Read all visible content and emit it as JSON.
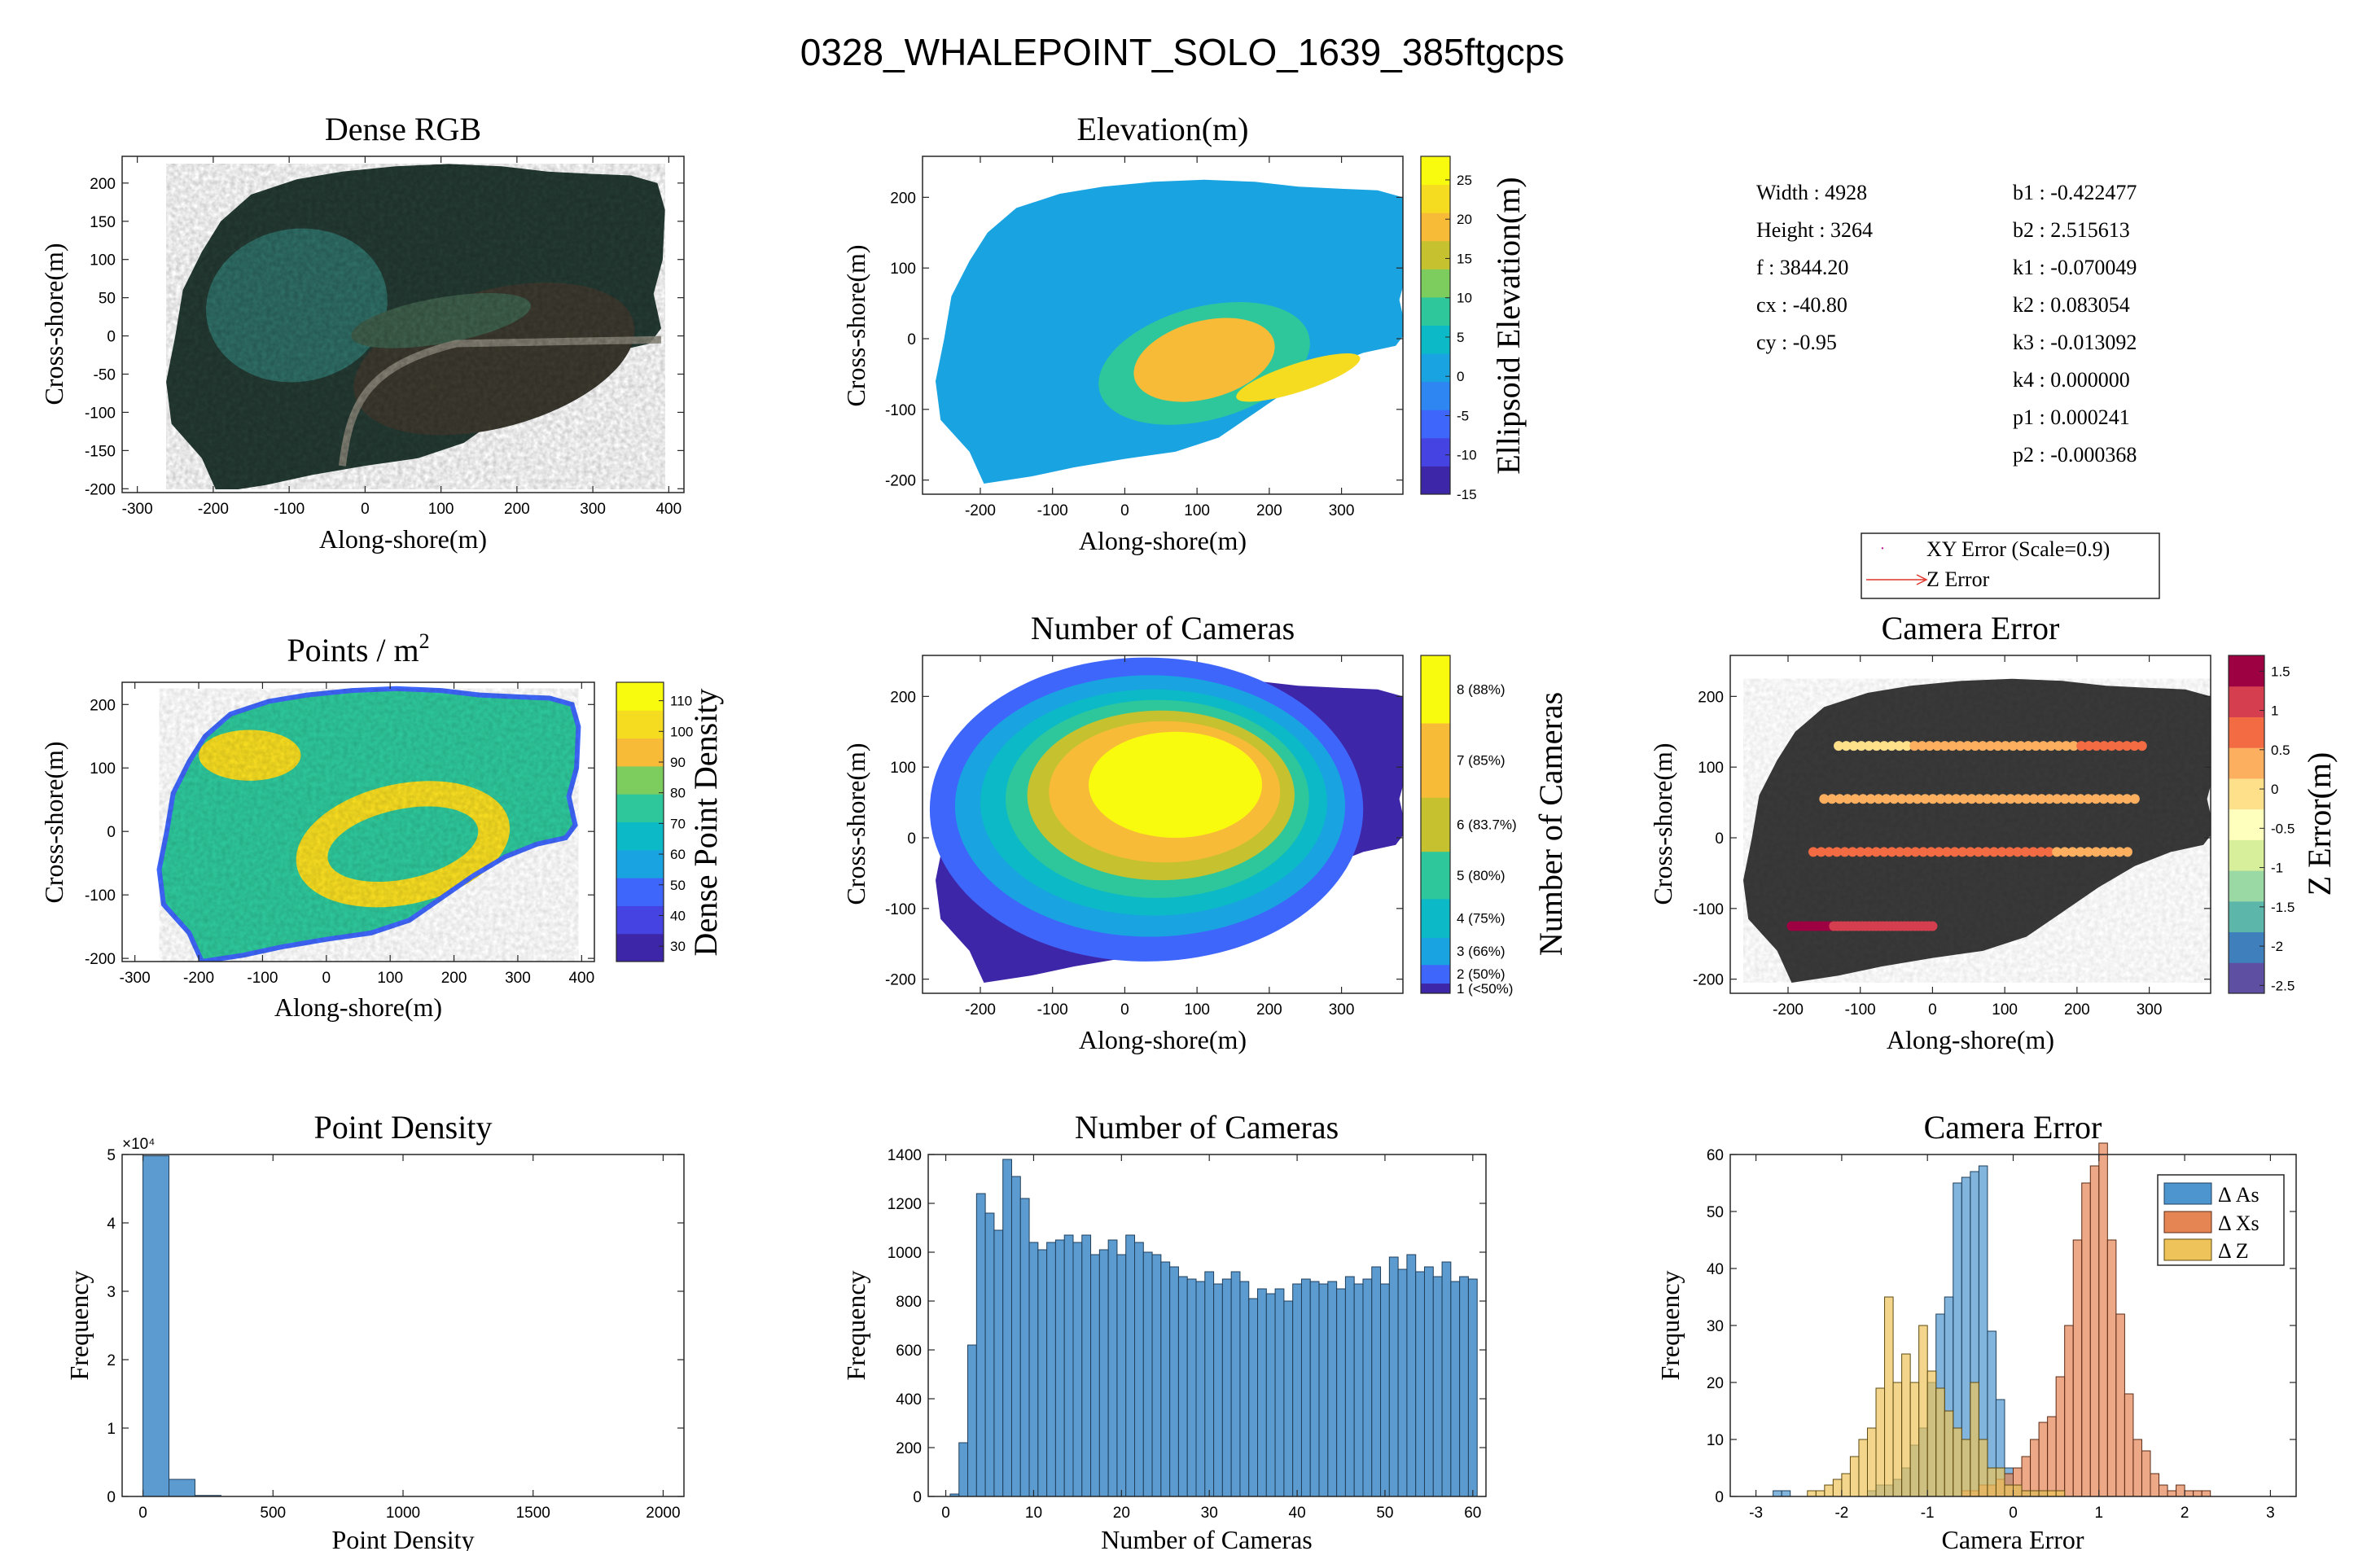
{
  "figure_title": "0328_WHALEPOINT_SOLO_1639_385ftgcps",
  "colors": {
    "rgb_dark": "#253b34",
    "rgb_teal": "#2f6e66",
    "rgb_sand": "#8d8a7c",
    "rgb_brown": "#3d3a30",
    "hist_blue": "#5b9bd0",
    "hist_edge": "#1f3f5b",
    "dAs": "#4c95cf",
    "dXs": "#e58554",
    "dZ": "#eec45a",
    "parula": [
      "#3e26a8",
      "#4543e2",
      "#3f66fb",
      "#2d86f2",
      "#19a3e1",
      "#0cb9c7",
      "#2ec79b",
      "#7ccc5e",
      "#c6c22f",
      "#f8bb38",
      "#f6dc21",
      "#f9fb0e"
    ],
    "rdylbu": [
      "#5e4fa2",
      "#3f7fbb",
      "#5cb7aa",
      "#9ad8a4",
      "#d7ee9b",
      "#fefebd",
      "#fee08b",
      "#fdaf60",
      "#f36b43",
      "#d53e4f",
      "#9e0142"
    ]
  },
  "intrinsics": {
    "left": [
      {
        "label": "Width :",
        "value": "4928"
      },
      {
        "label": "Height :",
        "value": "3264"
      },
      {
        "label": "f :",
        "value": "3844.20"
      },
      {
        "label": "cx :",
        "value": "-40.80"
      },
      {
        "label": "cy :",
        "value": "-0.95"
      }
    ],
    "right": [
      {
        "label": "b1 :",
        "value": "-0.422477"
      },
      {
        "label": "b2 :",
        "value": "2.515613"
      },
      {
        "label": "k1 :",
        "value": "-0.070049"
      },
      {
        "label": "k2 :",
        "value": "0.083054"
      },
      {
        "label": "k3 :",
        "value": "-0.013092"
      },
      {
        "label": "k4 :",
        "value": "0.000000"
      },
      {
        "label": "p1 :",
        "value": "0.000241"
      },
      {
        "label": "p2 :",
        "value": "-0.000368"
      }
    ]
  },
  "legend": {
    "xy": "XY Error (Scale=0.9)",
    "z": "Z Error"
  },
  "chart_data": [
    {
      "id": "dense-rgb",
      "type": "image",
      "title": "Dense RGB",
      "xlabel": "Along-shore(m)",
      "ylabel": "Cross-shore(m)",
      "xlim": [
        -320,
        420
      ],
      "ylim": [
        -205,
        235
      ],
      "xticks": [
        -300,
        -200,
        -100,
        0,
        100,
        200,
        300,
        400
      ],
      "yticks": [
        200,
        150,
        100,
        50,
        0,
        -50,
        -100,
        -150,
        -200
      ]
    },
    {
      "id": "elevation",
      "type": "heatmap",
      "title": "Elevation(m)",
      "xlabel": "Along-shore(m)",
      "ylabel": "Cross-shore(m)",
      "xlim": [
        -280,
        385
      ],
      "ylim": [
        -220,
        258
      ],
      "xticks": [
        -200,
        -100,
        0,
        100,
        200,
        300
      ],
      "yticks": [
        200,
        100,
        0,
        -100,
        -200
      ],
      "colorbar": {
        "label": "Ellipsoid Elevation(m)",
        "range": [
          -15,
          28
        ],
        "ticks": [
          25,
          20,
          15,
          10,
          5,
          0,
          -5,
          -10,
          -15
        ]
      },
      "values": {
        "background": 0,
        "inland_mound": 10,
        "mound_core": 20,
        "ridge": 26
      }
    },
    {
      "id": "points-density",
      "type": "heatmap",
      "title": "Points / m",
      "title_superscript": "2",
      "xlabel": "Along-shore(m)",
      "ylabel": "Cross-shore(m)",
      "xlim": [
        -320,
        420
      ],
      "ylim": [
        -205,
        235
      ],
      "xticks": [
        -300,
        -200,
        -100,
        0,
        100,
        200,
        300,
        400
      ],
      "yticks": [
        200,
        100,
        0,
        -100,
        -200
      ],
      "colorbar": {
        "label": "Dense Point Density",
        "range": [
          25,
          116
        ],
        "ticks": [
          110,
          100,
          90,
          80,
          70,
          60,
          50,
          40,
          30
        ]
      },
      "values": {
        "typical": 75,
        "high": 110,
        "edge": 40
      }
    },
    {
      "id": "num-cameras-map",
      "type": "heatmap",
      "title": "Number of Cameras",
      "xlabel": "Along-shore(m)",
      "ylabel": "Cross-shore(m)",
      "xlim": [
        -280,
        385
      ],
      "ylim": [
        -220,
        258
      ],
      "xticks": [
        -200,
        -100,
        0,
        100,
        200,
        300
      ],
      "yticks": [
        200,
        100,
        0,
        -100,
        -200
      ],
      "colorbar": {
        "label": "Number of Cameras",
        "ticks": [
          "8 (88%)",
          "7 (85%)",
          "6 (83.7%)",
          "5 (80%)",
          "4 (75%)",
          "3 (66%)",
          "2 (50%)",
          "1 (<50%)"
        ]
      },
      "levels": [
        1,
        2,
        3,
        4,
        5,
        6,
        7,
        8
      ]
    },
    {
      "id": "camera-error-map",
      "type": "scatter",
      "title": "Camera Error",
      "xlabel": "Along-shore(m)",
      "ylabel": "Cross-shore(m)",
      "xlim": [
        -280,
        385
      ],
      "ylim": [
        -220,
        258
      ],
      "xticks": [
        -200,
        -100,
        0,
        100,
        200,
        300
      ],
      "yticks": [
        200,
        100,
        0,
        -100,
        -200
      ],
      "colorbar": {
        "label": "Z Error(m)",
        "range": [
          -2.6,
          1.7
        ],
        "ticks": [
          1.5,
          1,
          0.5,
          0,
          -0.5,
          -1,
          -1.5,
          -2,
          -2.5
        ]
      },
      "flight_lines": [
        {
          "x": [
            -130,
            290
          ],
          "y": 130,
          "z": [
            0.0,
            0.8
          ]
        },
        {
          "x": [
            -150,
            280
          ],
          "y": 55,
          "z": [
            0.5,
            0.2
          ]
        },
        {
          "x": [
            -165,
            270
          ],
          "y": -20,
          "z": [
            1.0,
            0.5
          ]
        },
        {
          "x": [
            -195,
            0
          ],
          "y": -125,
          "z": [
            1.6,
            1.2
          ]
        }
      ]
    },
    {
      "id": "point-density-hist",
      "type": "bar",
      "title": "Point Density",
      "xlabel": "Point Density",
      "ylabel": "Frequency",
      "xlim": [
        -80,
        2080
      ],
      "ylim": [
        0,
        50000
      ],
      "xticks": [
        0,
        500,
        1000,
        1500,
        2000
      ],
      "yticks": [
        0,
        1,
        2,
        3,
        4,
        5
      ],
      "y_exponent": "×10⁴",
      "bins": [
        [
          0,
          100,
          49800
        ],
        [
          100,
          200,
          2500
        ],
        [
          200,
          300,
          150
        ]
      ]
    },
    {
      "id": "num-cameras-hist",
      "type": "bar",
      "title": "Number of Cameras",
      "xlabel": "Number of Cameras",
      "ylabel": "Frequency",
      "xlim": [
        -2,
        61.5
      ],
      "ylim": [
        0,
        1400
      ],
      "xticks": [
        0,
        10,
        20,
        30,
        40,
        50,
        60
      ],
      "yticks": [
        0,
        200,
        400,
        600,
        800,
        1000,
        1200,
        1400
      ],
      "x": [
        1,
        2,
        3,
        4,
        5,
        6,
        7,
        8,
        9,
        10,
        11,
        12,
        13,
        14,
        15,
        16,
        17,
        18,
        19,
        20,
        21,
        22,
        23,
        24,
        25,
        26,
        27,
        28,
        29,
        30,
        31,
        32,
        33,
        34,
        35,
        36,
        37,
        38,
        39,
        40,
        41,
        42,
        43,
        44,
        45,
        46,
        47,
        48,
        49,
        50,
        51,
        52,
        53,
        54,
        55,
        56,
        57,
        58,
        59,
        60
      ],
      "values": [
        10,
        220,
        620,
        1240,
        1160,
        1090,
        1380,
        1310,
        1220,
        1040,
        1010,
        1040,
        1050,
        1070,
        1040,
        1070,
        990,
        1010,
        1050,
        990,
        1070,
        1040,
        1000,
        990,
        960,
        940,
        900,
        890,
        880,
        920,
        870,
        890,
        920,
        880,
        810,
        850,
        830,
        850,
        800,
        870,
        890,
        880,
        870,
        880,
        850,
        900,
        870,
        890,
        940,
        870,
        980,
        930,
        990,
        920,
        940,
        900,
        960,
        880,
        900,
        890
      ]
    },
    {
      "id": "camera-error-hist",
      "type": "bar",
      "title": "Camera Error",
      "xlabel": "Camera Error",
      "ylabel": "Frequency",
      "xlim": [
        -3.3,
        3.3
      ],
      "ylim": [
        0,
        60
      ],
      "xticks": [
        -3,
        -2,
        -1,
        0,
        1,
        2,
        3
      ],
      "yticks": [
        0,
        10,
        20,
        30,
        40,
        50,
        60
      ],
      "bin_width": 0.1,
      "series": [
        {
          "name": "Δ As",
          "x0": -2.8,
          "values": [
            1,
            1,
            0,
            0,
            0,
            0,
            0,
            0,
            0,
            0,
            0,
            1,
            2,
            2,
            3,
            5,
            9,
            12,
            20,
            32,
            35,
            55,
            56,
            57,
            58,
            29,
            17,
            5,
            2,
            1,
            1,
            1
          ]
        },
        {
          "name": "Δ Xs",
          "x0": -0.6,
          "values": [
            1,
            1,
            2,
            2,
            3,
            4,
            5,
            7,
            10,
            13,
            14,
            21,
            30,
            45,
            55,
            58,
            62,
            45,
            32,
            18,
            10,
            8,
            4,
            2,
            1,
            2,
            1,
            1,
            1
          ]
        },
        {
          "name": "Δ Z",
          "x0": -2.4,
          "values": [
            1,
            1,
            2,
            3,
            4,
            7,
            10,
            12,
            19,
            35,
            20,
            25,
            20,
            30,
            22,
            19,
            15,
            12,
            10,
            20,
            10,
            5,
            5,
            2,
            2,
            1,
            1,
            1,
            1,
            1
          ]
        }
      ]
    }
  ]
}
